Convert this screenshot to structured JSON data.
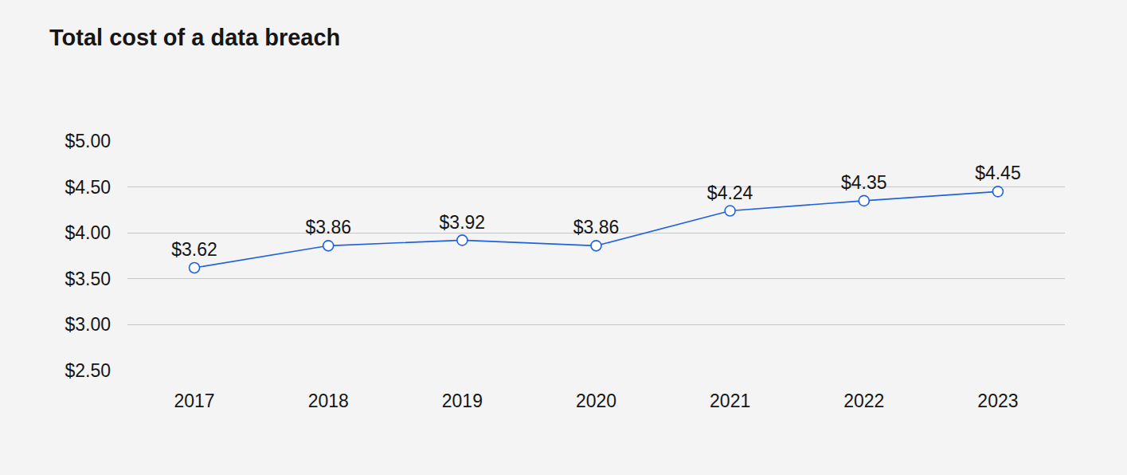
{
  "chart_data": {
    "type": "line",
    "title": "Total cost of a data breach",
    "categories": [
      "2017",
      "2018",
      "2019",
      "2020",
      "2021",
      "2022",
      "2023"
    ],
    "values": [
      3.62,
      3.86,
      3.92,
      3.86,
      4.24,
      4.35,
      4.45
    ],
    "value_labels": [
      "$3.62",
      "$3.86",
      "$3.92",
      "$3.86",
      "$4.24",
      "$4.35",
      "$4.45"
    ],
    "color": "#1f62e0",
    "marker": "circle",
    "ylim": [
      2.5,
      5.0
    ],
    "yticks": [
      {
        "value": 2.5,
        "label": "$2.50"
      },
      {
        "value": 3.0,
        "label": "$3.00"
      },
      {
        "value": 3.5,
        "label": "$3.50"
      },
      {
        "value": 4.0,
        "label": "$4.00"
      },
      {
        "value": 4.5,
        "label": "$4.50"
      },
      {
        "value": 5.0,
        "label": "$5.00"
      }
    ],
    "grid": true,
    "data_labels": true
  }
}
